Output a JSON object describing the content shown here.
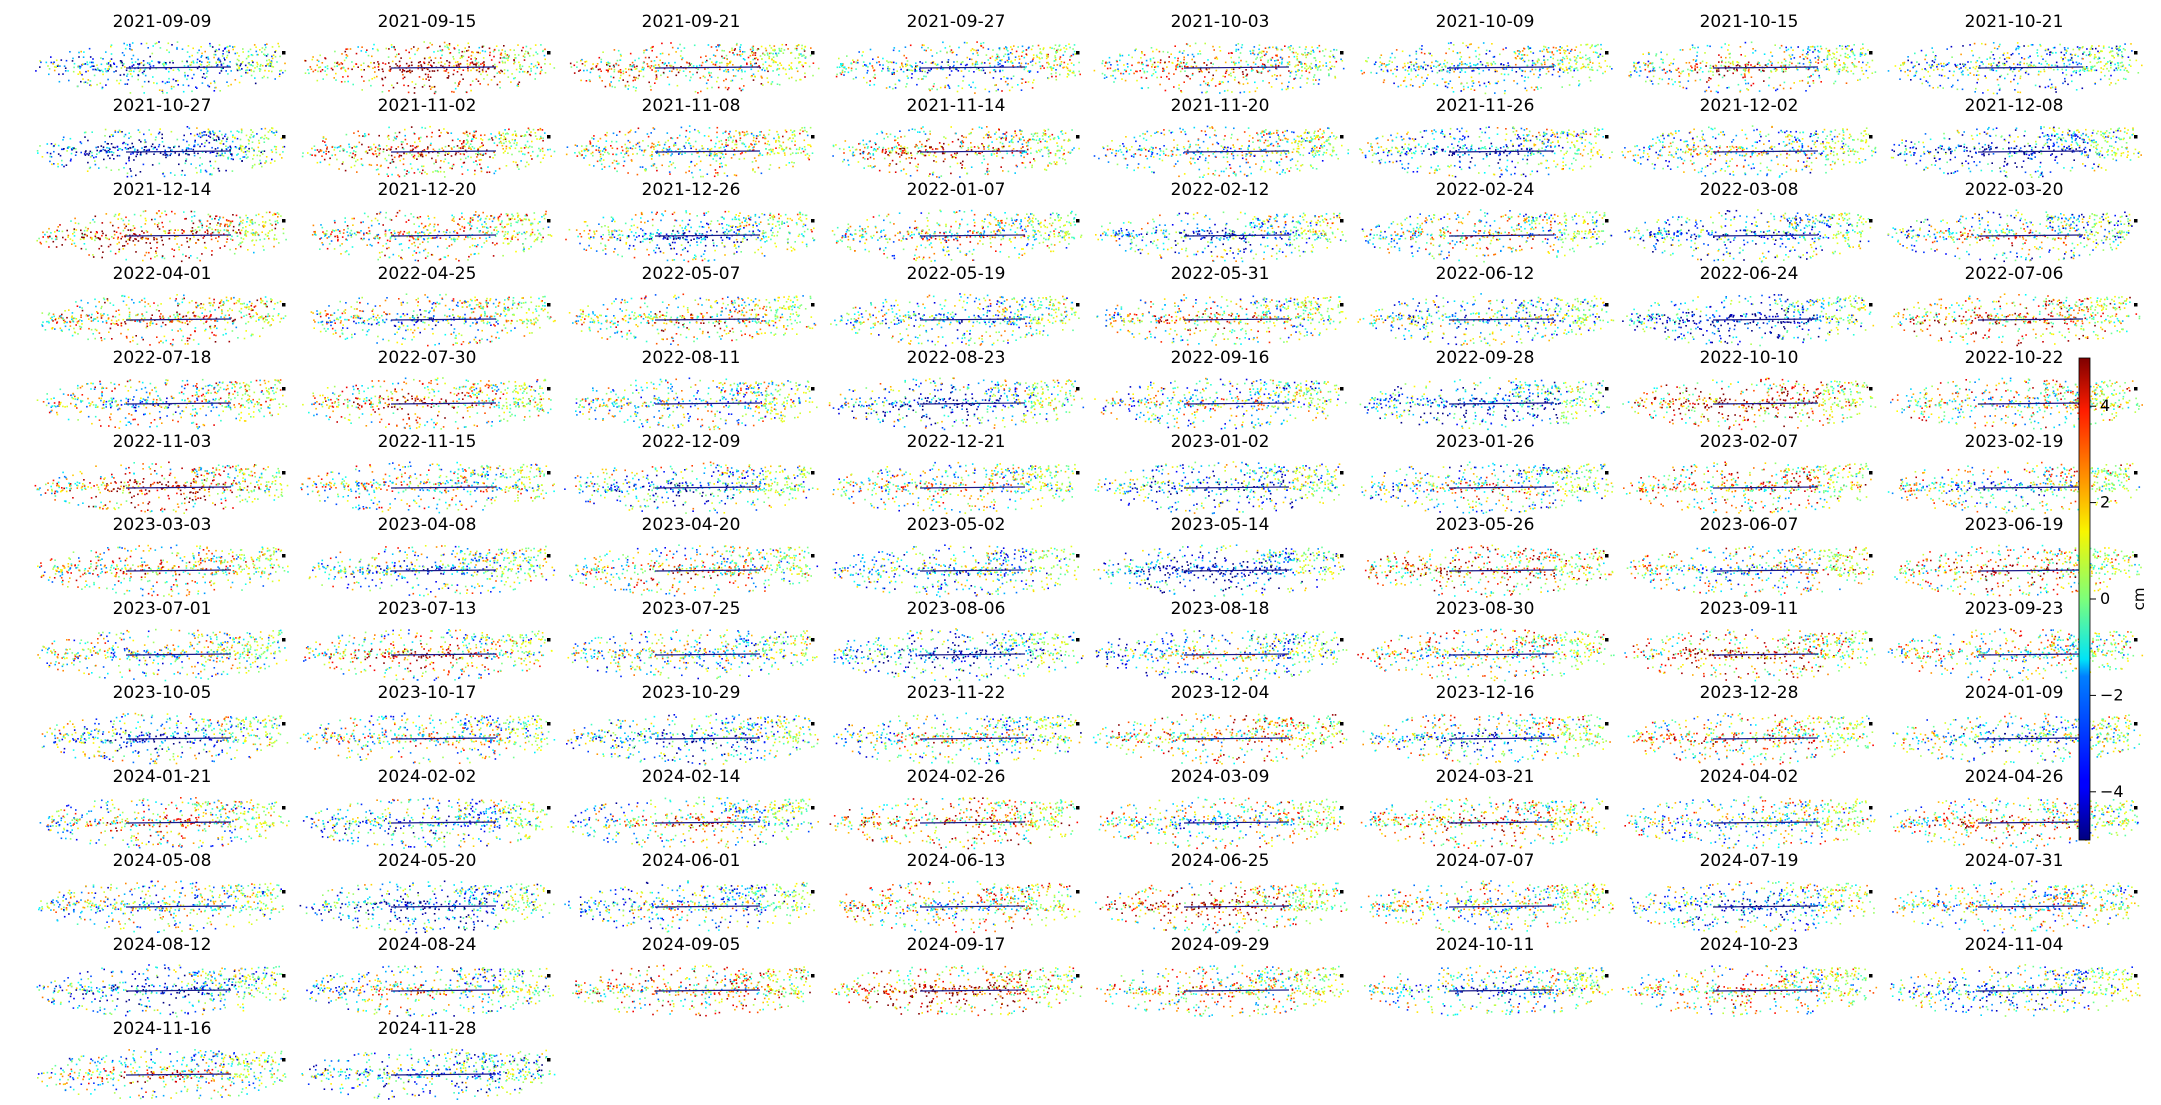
{
  "chart_data": {
    "type": "heatmap",
    "grid": {
      "columns": 8,
      "rows": 13
    },
    "colormap": "jet",
    "colorbar": {
      "label": "cm",
      "vmin": -5,
      "vmax": 5,
      "ticks": [
        4,
        2,
        0,
        -2,
        -4
      ],
      "tick_labels": [
        "4",
        "2",
        "0",
        "−2",
        "−4"
      ]
    },
    "panels": [
      {
        "date": "2021-09-09"
      },
      {
        "date": "2021-09-15"
      },
      {
        "date": "2021-09-21"
      },
      {
        "date": "2021-09-27"
      },
      {
        "date": "2021-10-03"
      },
      {
        "date": "2021-10-09"
      },
      {
        "date": "2021-10-15"
      },
      {
        "date": "2021-10-21"
      },
      {
        "date": "2021-10-27"
      },
      {
        "date": "2021-11-02"
      },
      {
        "date": "2021-11-08"
      },
      {
        "date": "2021-11-14"
      },
      {
        "date": "2021-11-20"
      },
      {
        "date": "2021-11-26"
      },
      {
        "date": "2021-12-02"
      },
      {
        "date": "2021-12-08"
      },
      {
        "date": "2021-12-14"
      },
      {
        "date": "2021-12-20"
      },
      {
        "date": "2021-12-26"
      },
      {
        "date": "2022-01-07"
      },
      {
        "date": "2022-02-12"
      },
      {
        "date": "2022-02-24"
      },
      {
        "date": "2022-03-08"
      },
      {
        "date": "2022-03-20"
      },
      {
        "date": "2022-04-01"
      },
      {
        "date": "2022-04-25"
      },
      {
        "date": "2022-05-07"
      },
      {
        "date": "2022-05-19"
      },
      {
        "date": "2022-05-31"
      },
      {
        "date": "2022-06-12"
      },
      {
        "date": "2022-06-24"
      },
      {
        "date": "2022-07-06"
      },
      {
        "date": "2022-07-18"
      },
      {
        "date": "2022-07-30"
      },
      {
        "date": "2022-08-11"
      },
      {
        "date": "2022-08-23"
      },
      {
        "date": "2022-09-16"
      },
      {
        "date": "2022-09-28"
      },
      {
        "date": "2022-10-10"
      },
      {
        "date": "2022-10-22"
      },
      {
        "date": "2022-11-03"
      },
      {
        "date": "2022-11-15"
      },
      {
        "date": "2022-12-09"
      },
      {
        "date": "2022-12-21"
      },
      {
        "date": "2023-01-02"
      },
      {
        "date": "2023-01-26"
      },
      {
        "date": "2023-02-07"
      },
      {
        "date": "2023-02-19"
      },
      {
        "date": "2023-03-03"
      },
      {
        "date": "2023-04-08"
      },
      {
        "date": "2023-04-20"
      },
      {
        "date": "2023-05-02"
      },
      {
        "date": "2023-05-14"
      },
      {
        "date": "2023-05-26"
      },
      {
        "date": "2023-06-07"
      },
      {
        "date": "2023-06-19"
      },
      {
        "date": "2023-07-01"
      },
      {
        "date": "2023-07-13"
      },
      {
        "date": "2023-07-25"
      },
      {
        "date": "2023-08-06"
      },
      {
        "date": "2023-08-18"
      },
      {
        "date": "2023-08-30"
      },
      {
        "date": "2023-09-11"
      },
      {
        "date": "2023-09-23"
      },
      {
        "date": "2023-10-05"
      },
      {
        "date": "2023-10-17"
      },
      {
        "date": "2023-10-29"
      },
      {
        "date": "2023-11-22"
      },
      {
        "date": "2023-12-04"
      },
      {
        "date": "2023-12-16"
      },
      {
        "date": "2023-12-28"
      },
      {
        "date": "2024-01-09"
      },
      {
        "date": "2024-01-21"
      },
      {
        "date": "2024-02-02"
      },
      {
        "date": "2024-02-14"
      },
      {
        "date": "2024-02-26"
      },
      {
        "date": "2024-03-09"
      },
      {
        "date": "2024-03-21"
      },
      {
        "date": "2024-04-02"
      },
      {
        "date": "2024-04-26"
      },
      {
        "date": "2024-05-08"
      },
      {
        "date": "2024-05-20"
      },
      {
        "date": "2024-06-01"
      },
      {
        "date": "2024-06-13"
      },
      {
        "date": "2024-06-25"
      },
      {
        "date": "2024-07-07"
      },
      {
        "date": "2024-07-19"
      },
      {
        "date": "2024-07-31"
      },
      {
        "date": "2024-08-12"
      },
      {
        "date": "2024-08-24"
      },
      {
        "date": "2024-09-05"
      },
      {
        "date": "2024-09-17"
      },
      {
        "date": "2024-09-29"
      },
      {
        "date": "2024-10-11"
      },
      {
        "date": "2024-10-23"
      },
      {
        "date": "2024-11-04"
      },
      {
        "date": "2024-11-16"
      },
      {
        "date": "2024-11-28"
      }
    ]
  }
}
